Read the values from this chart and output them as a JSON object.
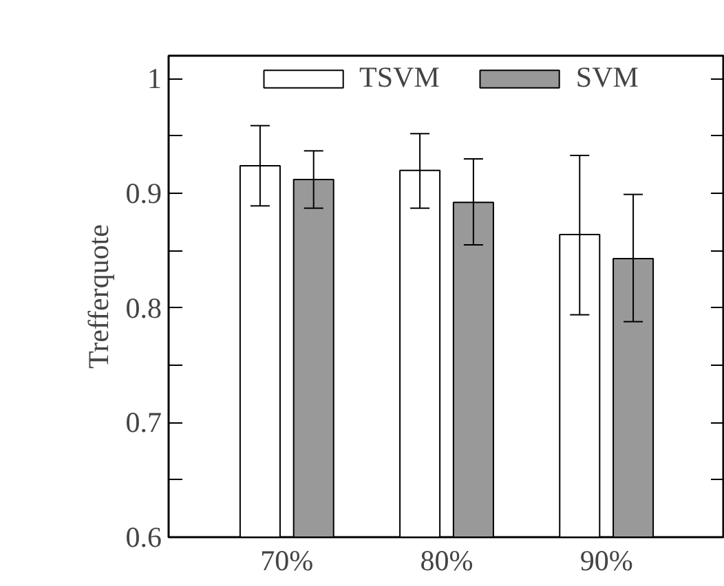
{
  "chart_data": {
    "type": "bar",
    "ylabel": "Trefferquote",
    "categories": [
      "70%",
      "80%",
      "90%"
    ],
    "series": [
      {
        "name": "TSVM",
        "color": "#ffffff",
        "values": [
          0.924,
          0.92,
          0.864
        ],
        "errors": [
          [
            0.889,
            0.959
          ],
          [
            0.887,
            0.952
          ],
          [
            0.794,
            0.933
          ]
        ]
      },
      {
        "name": "SVM",
        "color": "#999999",
        "values": [
          0.912,
          0.892,
          0.843
        ],
        "errors": [
          [
            0.887,
            0.937
          ],
          [
            0.855,
            0.93
          ],
          [
            0.788,
            0.899
          ]
        ]
      }
    ],
    "ylim": [
      0.6,
      1.02
    ],
    "yticks": [
      0.6,
      {
        "value": 0.65,
        "label": null
      },
      0.7,
      {
        "value": 0.75,
        "label": null
      },
      0.8,
      {
        "value": 0.85,
        "label": null
      },
      0.9,
      {
        "value": 0.95,
        "label": null
      },
      1
    ],
    "grid": false,
    "legend": "top"
  }
}
